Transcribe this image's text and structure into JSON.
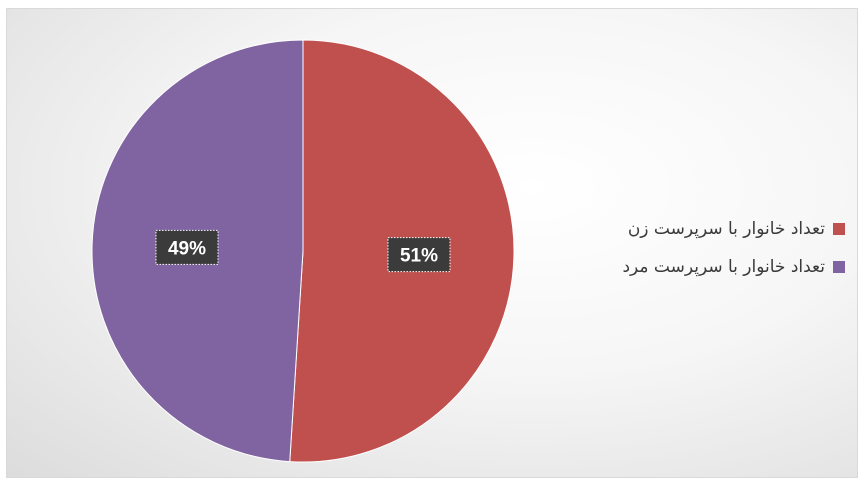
{
  "chart_data": {
    "type": "pie",
    "title": "",
    "slices": [
      {
        "label": "تعداد خانوار با سرپرست زن",
        "value": 51,
        "display": "51%",
        "color": "#c0504d"
      },
      {
        "label": "تعداد خانوار با سرپرست مرد",
        "value": 49,
        "display": "49%",
        "color": "#8064a2"
      }
    ],
    "start_angle_deg": 0,
    "direction": "clockwise",
    "legend_position": "right"
  }
}
